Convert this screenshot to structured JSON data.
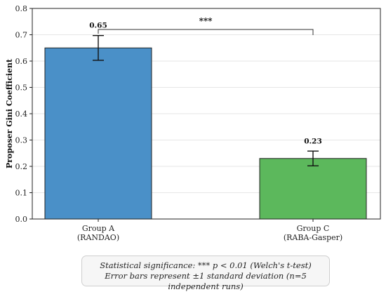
{
  "chart_data": {
    "type": "bar",
    "categories": [
      "Group A\n(RANDAO)",
      "Group C\n(RABA-Gasper)"
    ],
    "values": [
      0.65,
      0.23
    ],
    "errors": [
      0.047,
      0.028
    ],
    "data_labels": [
      "0.65",
      "0.23"
    ],
    "colors": [
      "#4a90c8",
      "#5cb85c"
    ],
    "title": "",
    "xlabel": "",
    "ylabel": "Proposer Gini Coefficient",
    "ylim": [
      0,
      0.8
    ],
    "yticks": [
      "0.0",
      "0.1",
      "0.2",
      "0.3",
      "0.4",
      "0.5",
      "0.6",
      "0.7",
      "0.8"
    ],
    "grid": "horizontal",
    "significance_label": "***"
  },
  "note": {
    "line1": "Statistical significance: *** p < 0.01 (Welch's t-test)",
    "line2": "Error bars represent ±1 standard deviation (n=5 independent runs)"
  }
}
